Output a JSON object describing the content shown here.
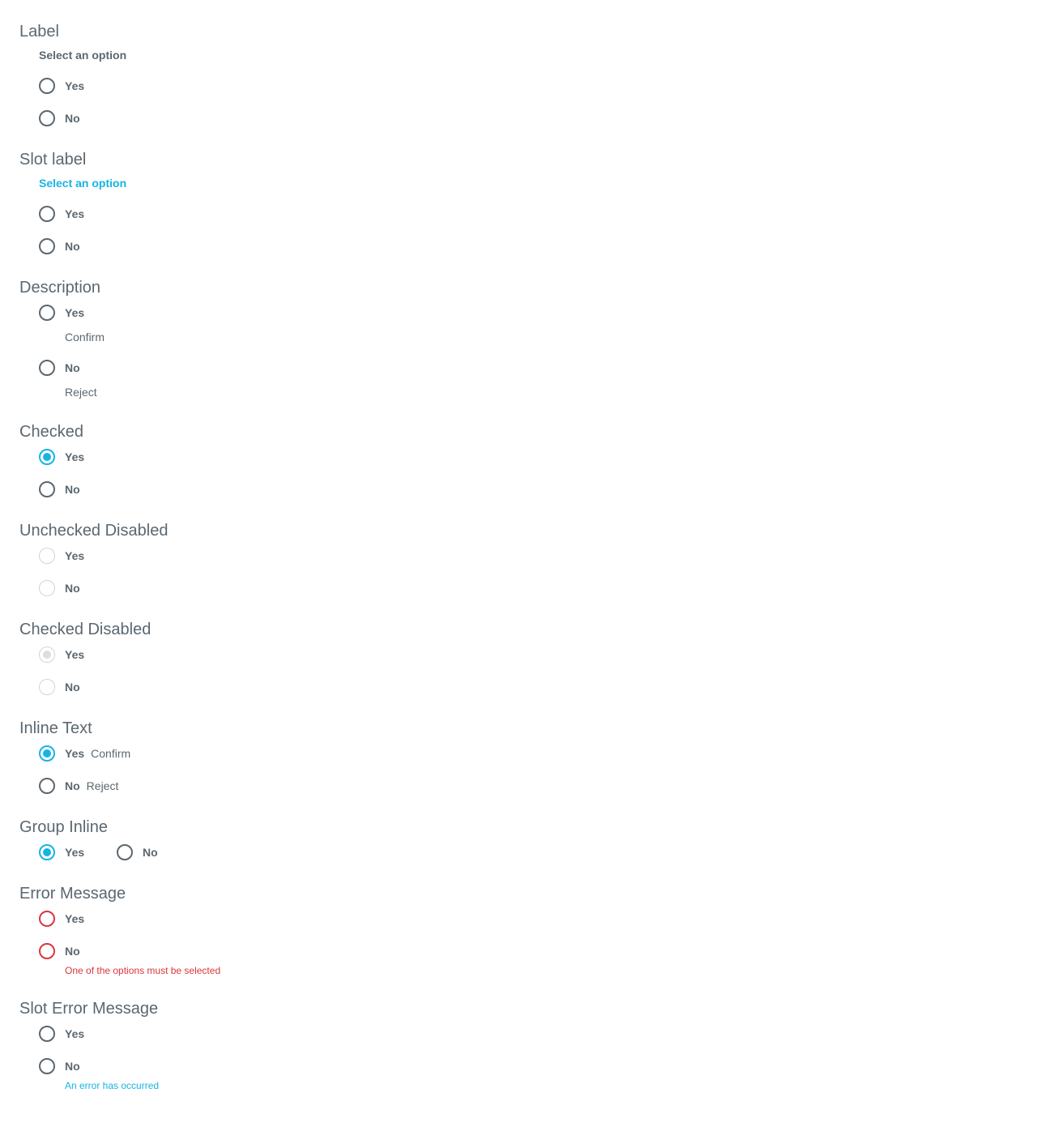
{
  "sections": {
    "label": {
      "title": "Label",
      "group_label": "Select an option",
      "options": [
        "Yes",
        "No"
      ]
    },
    "slot_label": {
      "title": "Slot label",
      "group_label": "Select an option",
      "options": [
        "Yes",
        "No"
      ]
    },
    "description": {
      "title": "Description",
      "options": [
        {
          "label": "Yes",
          "description": "Confirm"
        },
        {
          "label": "No",
          "description": "Reject"
        }
      ]
    },
    "checked": {
      "title": "Checked",
      "options": [
        "Yes",
        "No"
      ],
      "selected": "Yes"
    },
    "unchecked_disabled": {
      "title": "Unchecked Disabled",
      "options": [
        "Yes",
        "No"
      ]
    },
    "checked_disabled": {
      "title": "Checked Disabled",
      "options": [
        "Yes",
        "No"
      ],
      "selected": "Yes"
    },
    "inline_text": {
      "title": "Inline Text",
      "options": [
        {
          "label": "Yes",
          "description": "Confirm"
        },
        {
          "label": "No",
          "description": "Reject"
        }
      ],
      "selected": "Yes"
    },
    "group_inline": {
      "title": "Group Inline",
      "options": [
        "Yes",
        "No"
      ],
      "selected": "Yes"
    },
    "error_message": {
      "title": "Error Message",
      "options": [
        "Yes",
        "No"
      ],
      "message": "One of the options must be selected"
    },
    "slot_error_message": {
      "title": "Slot Error Message",
      "options": [
        "Yes",
        "No"
      ],
      "message": "An error has occurred"
    }
  },
  "colors": {
    "text": "#5b6770",
    "accent": "#16b4e5",
    "error": "#d9363e",
    "disabled": "#d0d5d9"
  }
}
